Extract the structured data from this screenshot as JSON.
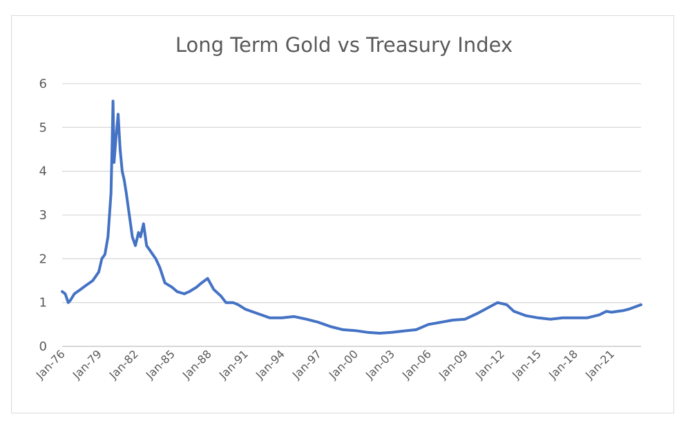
{
  "chart_data": {
    "type": "line",
    "title": "Long Term Gold vs Treasury Index",
    "xlabel": "",
    "ylabel": "",
    "ylim": [
      0,
      6
    ],
    "yticks": [
      "0",
      "1",
      "2",
      "3",
      "4",
      "5",
      "6"
    ],
    "xlim": [
      "1976-01",
      "2023-06"
    ],
    "xtick_labels": [
      "Jan-76",
      "Jan-79",
      "Jan-82",
      "Jan-85",
      "Jan-88",
      "Jan-91",
      "Jan-94",
      "Jan-97",
      "Jan-00",
      "Jan-03",
      "Jan-06",
      "Jan-09",
      "Jan-12",
      "Jan-15",
      "Jan-18",
      "Jan-21"
    ],
    "grid": true,
    "legend": "none",
    "line_color": "#4472c4",
    "series": [
      {
        "x": [
          "1976-01",
          "1976-04",
          "1976-07",
          "1976-09",
          "1977-01",
          "1977-07",
          "1978-01",
          "1978-07",
          "1979-01",
          "1979-04",
          "1979-07",
          "1979-10",
          "1980-01",
          "1980-02",
          "1980-03",
          "1980-04",
          "1980-06",
          "1980-08",
          "1980-10",
          "1980-12",
          "1981-02",
          "1981-04",
          "1981-07",
          "1981-10",
          "1982-01",
          "1982-04",
          "1982-06",
          "1982-09",
          "1982-12",
          "1983-03",
          "1983-06",
          "1983-09",
          "1984-01",
          "1984-06",
          "1985-01",
          "1985-06",
          "1986-01",
          "1986-06",
          "1987-01",
          "1987-06",
          "1987-12",
          "1988-06",
          "1989-01",
          "1989-06",
          "1990-01",
          "1990-06",
          "1991-01",
          "1992-01",
          "1993-01",
          "1994-01",
          "1995-01",
          "1996-01",
          "1997-01",
          "1998-01",
          "1999-01",
          "2000-01",
          "2001-01",
          "2002-01",
          "2003-01",
          "2004-01",
          "2005-01",
          "2006-01",
          "2007-01",
          "2008-01",
          "2009-01",
          "2010-01",
          "2011-01",
          "2011-09",
          "2012-06",
          "2013-01",
          "2014-01",
          "2015-01",
          "2016-01",
          "2017-01",
          "2018-01",
          "2019-01",
          "2020-01",
          "2020-08",
          "2021-01",
          "2022-01",
          "2022-06",
          "2023-06"
        ],
        "values": [
          1.25,
          1.2,
          1.0,
          1.05,
          1.2,
          1.3,
          1.4,
          1.5,
          1.7,
          2.0,
          2.1,
          2.5,
          3.5,
          4.5,
          5.6,
          4.2,
          4.8,
          5.3,
          4.5,
          4.0,
          3.8,
          3.5,
          3.0,
          2.5,
          2.3,
          2.6,
          2.5,
          2.8,
          2.3,
          2.2,
          2.1,
          2.0,
          1.8,
          1.45,
          1.35,
          1.25,
          1.2,
          1.25,
          1.35,
          1.45,
          1.55,
          1.3,
          1.15,
          1.0,
          1.0,
          0.95,
          0.85,
          0.75,
          0.65,
          0.65,
          0.68,
          0.62,
          0.55,
          0.45,
          0.38,
          0.36,
          0.32,
          0.3,
          0.32,
          0.35,
          0.38,
          0.5,
          0.55,
          0.6,
          0.62,
          0.75,
          0.9,
          1.0,
          0.95,
          0.8,
          0.7,
          0.65,
          0.62,
          0.65,
          0.65,
          0.65,
          0.72,
          0.8,
          0.78,
          0.82,
          0.85,
          0.95
        ]
      }
    ]
  }
}
